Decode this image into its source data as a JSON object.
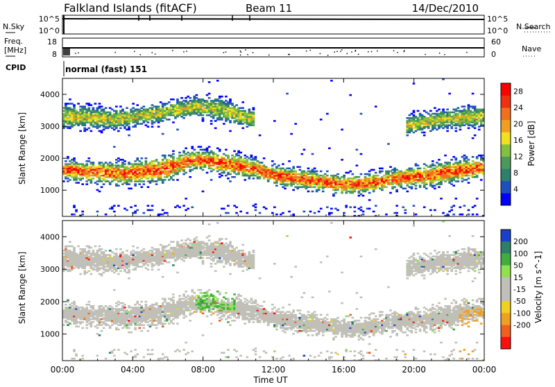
{
  "header": {
    "title": "Falkland Islands (fitACF)",
    "beam": "Beam 11",
    "date": "14/Dec/2010"
  },
  "nsky_panel": {
    "left_label": "N.Sky",
    "right_label": "N.Search",
    "left_ticks": [
      "10^5",
      "10^0"
    ],
    "right_ticks": [
      "10^5",
      "10^0"
    ]
  },
  "freq_panel": {
    "left_label_1": "Freq.",
    "left_label_2": "[MHz]",
    "right_label": "Nave",
    "left_ticks": [
      "18",
      "8"
    ],
    "right_ticks": [
      "60",
      "0"
    ]
  },
  "cpid": {
    "label": "CPID",
    "value": "normal (fast) 151"
  },
  "chart_data": [
    {
      "type": "heatmap",
      "panel": "power",
      "ylabel": "Slant Range [km]",
      "xlabel": "",
      "ylim": [
        180,
        4500
      ],
      "yticks": [
        "1000",
        "2000",
        "3000",
        "4000"
      ],
      "colorbar": {
        "label": "Power [dB]",
        "ticks": [
          "4",
          "8",
          "12",
          "16",
          "20",
          "24",
          "28"
        ],
        "colors": [
          "#0000ff",
          "#1e4fc0",
          "#2f7f6f",
          "#4c9a5a",
          "#84c040",
          "#f0e020",
          "#f0a020",
          "#f07020",
          "#f03010",
          "#ff0000"
        ],
        "range": [
          0,
          30
        ]
      },
      "bands": [
        {
          "name": "main",
          "points": [
            [
              0.0,
              1620,
              300
            ],
            [
              1.5,
              1550,
              320
            ],
            [
              3.5,
              1500,
              350
            ],
            [
              5.8,
              1650,
              400
            ],
            [
              7.5,
              1950,
              300
            ],
            [
              9.5,
              1800,
              350
            ],
            [
              10.9,
              1650,
              300
            ],
            [
              12.0,
              1450,
              300
            ],
            [
              14.0,
              1300,
              300
            ],
            [
              16.0,
              1150,
              300
            ],
            [
              17.5,
              1200,
              300
            ],
            [
              19.0,
              1350,
              300
            ],
            [
              21.0,
              1450,
              350
            ],
            [
              22.5,
              1600,
              350
            ],
            [
              24.0,
              1700,
              300
            ]
          ]
        },
        {
          "name": "upper",
          "points": [
            [
              0.0,
              3300,
              400
            ],
            [
              3.0,
              3200,
              300
            ],
            [
              5.5,
              3400,
              300
            ],
            [
              7.5,
              3600,
              300
            ],
            [
              9.0,
              3500,
              350
            ],
            [
              10.8,
              3200,
              300
            ]
          ]
        },
        {
          "name": "late-upper",
          "points": [
            [
              19.5,
              3000,
              300
            ],
            [
              21.5,
              3200,
              300
            ],
            [
              24.0,
              3300,
              350
            ]
          ]
        }
      ]
    },
    {
      "type": "heatmap",
      "panel": "velocity",
      "ylabel": "Slant Range [km]",
      "xlabel": "Time UT",
      "ylim": [
        180,
        4500
      ],
      "yticks": [
        "1000",
        "2000",
        "3000",
        "4000"
      ],
      "xticks": [
        "00:00",
        "04:00",
        "08:00",
        "12:00",
        "16:00",
        "20:00",
        "00:00"
      ],
      "xlim_hours": [
        0,
        24
      ],
      "colorbar": {
        "label": "Velocity [m s^-1]",
        "ticks": [
          "200",
          "100",
          "50",
          "15",
          "-15",
          "-50",
          "-100",
          "-200"
        ],
        "colors": [
          "#1a3fc8",
          "#2e7f6a",
          "#3fae3f",
          "#90e050",
          "#c0c0b8",
          "#c0c0b8",
          "#f0d020",
          "#f0a020",
          "#f06020",
          "#ff1010"
        ],
        "range": [
          -250,
          250
        ]
      }
    }
  ]
}
